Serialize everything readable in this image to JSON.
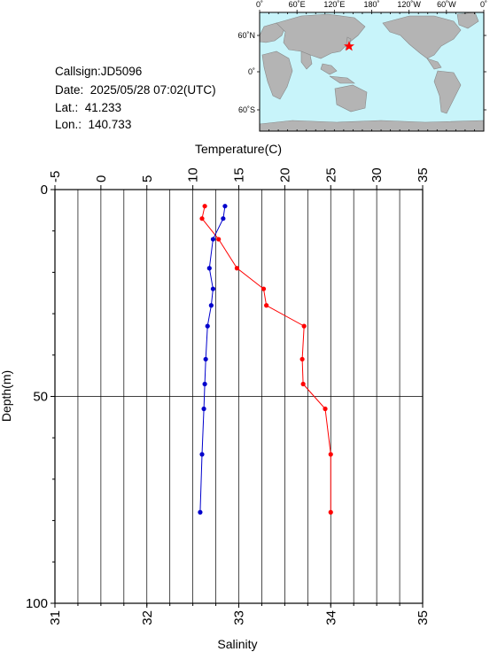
{
  "station": {
    "callsign": "Callsign:JD5096",
    "date": "Date:  2025/05/28 07:02(UTC)",
    "lat": "Lat.:  41.233",
    "lon": "Lon.:  140.733"
  },
  "map": {
    "top_ticks": [
      "0˚",
      "60˚E",
      "120˚E",
      "180˚",
      "120˚W",
      "60˚W",
      "0˚"
    ],
    "left_ticks": [
      "60˚N",
      "0˚",
      "60˚S"
    ],
    "ocean_color": "#c8f4fa",
    "land_color": "#b4b4b4",
    "marker_color": "#ff0000"
  },
  "chart_data": {
    "type": "line",
    "title": "",
    "top_axis": {
      "label": "Temperature(C)",
      "range": [
        -5,
        35
      ],
      "ticks": [
        -5,
        0,
        5,
        10,
        15,
        20,
        25,
        30,
        35
      ],
      "tick_labels": [
        "-5",
        "0",
        "5",
        "10",
        "15",
        "20",
        "25",
        "30",
        "35"
      ]
    },
    "bottom_axis": {
      "label": "Salinity",
      "range": [
        31,
        35
      ],
      "ticks": [
        31,
        32,
        33,
        34,
        35
      ],
      "tick_labels": [
        "31",
        "32",
        "33",
        "34",
        "35"
      ]
    },
    "y_axis": {
      "label": "Depth(m)",
      "range": [
        0,
        100
      ],
      "inverted": true,
      "ticks": [
        0,
        50,
        100
      ],
      "tick_labels": [
        "0",
        "50",
        "100"
      ]
    },
    "grid": true,
    "series": [
      {
        "color": "#ff0000",
        "axis": "top",
        "points": [
          {
            "x": 11.3,
            "y": 4
          },
          {
            "x": 11.0,
            "y": 7
          },
          {
            "x": 12.8,
            "y": 12
          },
          {
            "x": 14.8,
            "y": 19
          },
          {
            "x": 17.7,
            "y": 24
          },
          {
            "x": 18.0,
            "y": 28
          },
          {
            "x": 22.1,
            "y": 33
          },
          {
            "x": 21.9,
            "y": 41
          },
          {
            "x": 22.0,
            "y": 47
          },
          {
            "x": 24.4,
            "y": 53
          },
          {
            "x": 25.0,
            "y": 64
          },
          {
            "x": 25.0,
            "y": 78
          }
        ]
      },
      {
        "color": "#0000cc",
        "axis": "bottom",
        "points": [
          {
            "x": 32.85,
            "y": 4
          },
          {
            "x": 32.83,
            "y": 7
          },
          {
            "x": 32.72,
            "y": 12
          },
          {
            "x": 32.68,
            "y": 19
          },
          {
            "x": 32.72,
            "y": 24
          },
          {
            "x": 32.7,
            "y": 28
          },
          {
            "x": 32.66,
            "y": 33
          },
          {
            "x": 32.64,
            "y": 41
          },
          {
            "x": 32.63,
            "y": 47
          },
          {
            "x": 32.62,
            "y": 53
          },
          {
            "x": 32.6,
            "y": 64
          },
          {
            "x": 32.58,
            "y": 78
          }
        ]
      }
    ]
  }
}
